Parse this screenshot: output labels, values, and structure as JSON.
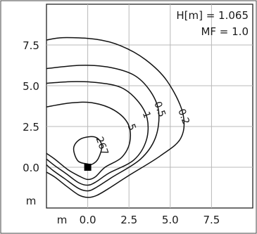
{
  "chart_data": {
    "type": "contour",
    "info_lines": [
      "H[m] = 1.065",
      "MF = 1.0"
    ],
    "x_unit": "m",
    "y_unit": "m",
    "x_ticks": [
      {
        "value": 0.0,
        "label": "0.0"
      },
      {
        "value": 2.5,
        "label": "2.5"
      },
      {
        "value": 5.0,
        "label": "5.0"
      },
      {
        "value": 7.5,
        "label": "7.5"
      }
    ],
    "y_ticks": [
      {
        "value": 0.0,
        "label": "0.0"
      },
      {
        "value": 2.5,
        "label": "2.5"
      },
      {
        "value": 5.0,
        "label": "5.0"
      },
      {
        "value": 7.5,
        "label": "7.5"
      }
    ],
    "xlim": [
      -2.5,
      10.0
    ],
    "ylim": [
      -2.5,
      10.0
    ],
    "grid": true,
    "source_marker": {
      "x": 0.0,
      "y": 0.0
    },
    "contours": [
      {
        "label": "267",
        "label_at": [
          0.85,
          1.3
        ],
        "points": [
          [
            0.0,
            0.2
          ],
          [
            -0.6,
            0.4
          ],
          [
            -0.85,
            1.2
          ],
          [
            -0.4,
            1.75
          ],
          [
            0.45,
            1.85
          ],
          [
            0.85,
            1.35
          ],
          [
            0.65,
            0.55
          ],
          [
            0.3,
            0.2
          ]
        ]
      },
      {
        "label": "5",
        "label_at": [
          2.65,
          2.45
        ],
        "points": [
          [
            -2.5,
            3.7
          ],
          [
            -1.0,
            3.95
          ],
          [
            0.3,
            3.95
          ],
          [
            1.6,
            3.5
          ],
          [
            2.45,
            2.65
          ],
          [
            2.55,
            1.55
          ],
          [
            2.05,
            0.6
          ],
          [
            1.05,
            0.0
          ],
          [
            0.45,
            -0.6
          ],
          [
            0.0,
            -0.75
          ],
          [
            -0.5,
            -0.55
          ],
          [
            -1.2,
            -0.15
          ],
          [
            -2.0,
            0.5
          ],
          [
            -2.5,
            0.85
          ]
        ]
      },
      {
        "label": "1",
        "label_at": [
          3.55,
          3.2
        ],
        "points": [
          [
            -2.5,
            5.15
          ],
          [
            -1.0,
            5.25
          ],
          [
            0.5,
            5.2
          ],
          [
            2.0,
            4.9
          ],
          [
            3.0,
            4.1
          ],
          [
            3.6,
            3.0
          ],
          [
            3.55,
            1.65
          ],
          [
            2.8,
            0.45
          ],
          [
            1.3,
            -0.35
          ],
          [
            0.5,
            -0.9
          ],
          [
            0.0,
            -1.1
          ],
          [
            -0.55,
            -0.95
          ],
          [
            -1.3,
            -0.4
          ],
          [
            -2.0,
            0.1
          ],
          [
            -2.5,
            0.5
          ]
        ]
      },
      {
        "label": "0.5",
        "label_at": [
          4.35,
          3.55
        ],
        "points": [
          [
            -2.5,
            6.05
          ],
          [
            -0.5,
            6.25
          ],
          [
            1.2,
            6.15
          ],
          [
            2.8,
            5.65
          ],
          [
            3.8,
            4.65
          ],
          [
            4.3,
            3.4
          ],
          [
            4.1,
            1.8
          ],
          [
            3.2,
            0.5
          ],
          [
            1.5,
            -0.6
          ],
          [
            0.5,
            -1.25
          ],
          [
            0.0,
            -1.45
          ],
          [
            -0.55,
            -1.3
          ],
          [
            -1.4,
            -0.7
          ],
          [
            -2.1,
            -0.2
          ],
          [
            -2.5,
            0.15
          ]
        ]
      },
      {
        "label": "0.2",
        "label_at": [
          5.8,
          3.1
        ],
        "points": [
          [
            -2.5,
            7.8
          ],
          [
            -1.5,
            7.95
          ],
          [
            0.5,
            7.85
          ],
          [
            2.0,
            7.45
          ],
          [
            3.5,
            6.6
          ],
          [
            4.8,
            5.3
          ],
          [
            5.75,
            3.35
          ],
          [
            5.65,
            1.8
          ],
          [
            4.4,
            0.7
          ],
          [
            2.5,
            -0.5
          ],
          [
            1.2,
            -1.35
          ],
          [
            0.5,
            -1.75
          ],
          [
            0.0,
            -1.85
          ],
          [
            -0.55,
            -1.7
          ],
          [
            -1.3,
            -1.15
          ],
          [
            -2.0,
            -0.6
          ],
          [
            -2.5,
            -0.3
          ]
        ]
      }
    ]
  }
}
